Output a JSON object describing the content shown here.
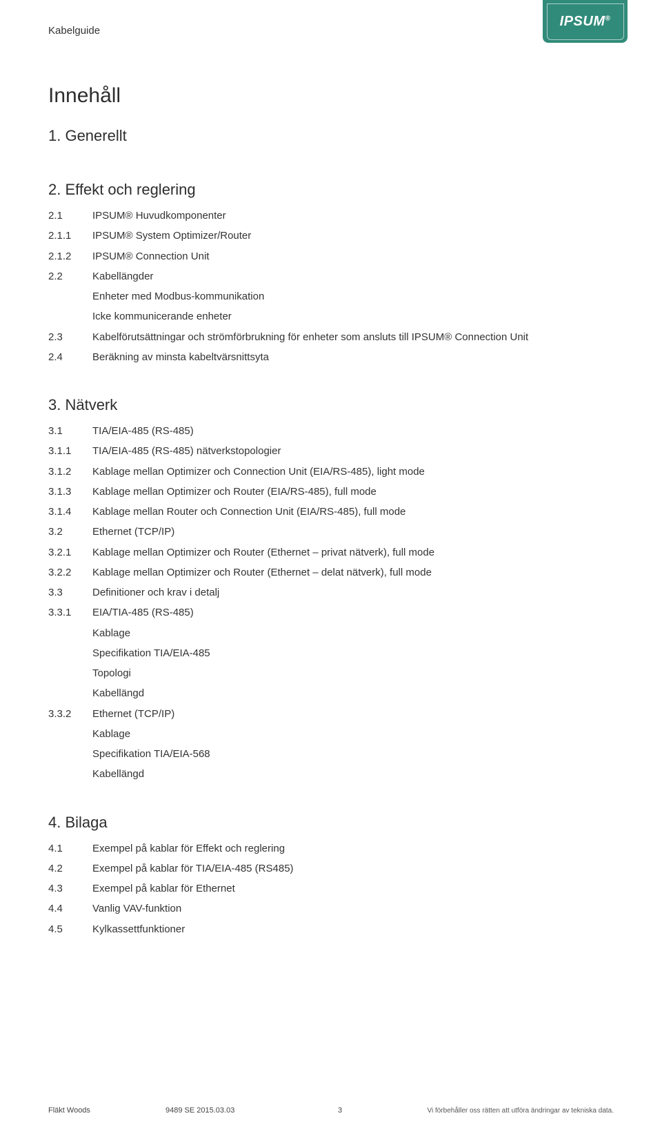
{
  "header": {
    "doc_label": "Kabelguide",
    "brand": "IPSUM",
    "brand_reg": "®"
  },
  "title": "Innehåll",
  "sections": [
    {
      "head": "1. Generellt",
      "items": []
    },
    {
      "head": "2. Effekt och reglering",
      "items": [
        {
          "num": "2.1",
          "text": "IPSUM® Huvudkomponenter"
        },
        {
          "num": "2.1.1",
          "text": "IPSUM® System Optimizer/Router"
        },
        {
          "num": "2.1.2",
          "text": "IPSUM® Connection Unit"
        },
        {
          "num": "2.2",
          "text": "Kabellängder"
        },
        {
          "num": "",
          "text": "Enheter med Modbus-kommunikation",
          "indent": true
        },
        {
          "num": "",
          "text": "Icke kommunicerande enheter",
          "indent": true
        },
        {
          "num": "2.3",
          "text": "Kabelförutsättningar och strömförbrukning för enheter som ansluts till IPSUM® Connection Unit"
        },
        {
          "num": "2.4",
          "text": "Beräkning av minsta kabeltvärsnittsyta"
        }
      ]
    },
    {
      "head": "3. Nätverk",
      "items": [
        {
          "num": "3.1",
          "text": "TIA/EIA-485 (RS-485)"
        },
        {
          "num": "3.1.1",
          "text": "TIA/EIA-485 (RS-485) nätverkstopologier"
        },
        {
          "num": "3.1.2",
          "text": "Kablage mellan Optimizer och Connection Unit (EIA/RS-485), light mode"
        },
        {
          "num": "3.1.3",
          "text": "Kablage mellan Optimizer och Router (EIA/RS-485), full mode"
        },
        {
          "num": "3.1.4",
          "text": "Kablage mellan Router och Connection Unit (EIA/RS-485), full mode"
        },
        {
          "num": "3.2",
          "text": "Ethernet (TCP/IP)"
        },
        {
          "num": "3.2.1",
          "text": "Kablage mellan Optimizer och Router (Ethernet – privat nätverk), full mode"
        },
        {
          "num": "3.2.2",
          "text": "Kablage mellan Optimizer och Router (Ethernet – delat nätverk), full mode"
        },
        {
          "num": "3.3",
          "text": "Definitioner och krav i detalj"
        },
        {
          "num": "3.3.1",
          "text": "EIA/TIA-485 (RS-485)"
        },
        {
          "num": "",
          "text": "Kablage",
          "indent": true
        },
        {
          "num": "",
          "text": "Specifikation TIA/EIA-485",
          "indent": true
        },
        {
          "num": "",
          "text": "Topologi",
          "indent": true
        },
        {
          "num": "",
          "text": "Kabellängd",
          "indent": true
        },
        {
          "num": "3.3.2",
          "text": "Ethernet (TCP/IP)"
        },
        {
          "num": "",
          "text": "Kablage",
          "indent": true
        },
        {
          "num": "",
          "text": "Specifikation TIA/EIA-568",
          "indent": true
        },
        {
          "num": "",
          "text": "Kabellängd",
          "indent": true
        }
      ]
    },
    {
      "head": "4. Bilaga",
      "items": [
        {
          "num": "4.1",
          "text": "Exempel på kablar för Effekt och reglering"
        },
        {
          "num": "4.2",
          "text": "Exempel på kablar för TIA/EIA-485 (RS485)"
        },
        {
          "num": "4.3",
          "text": "Exempel på kablar för Ethernet"
        },
        {
          "num": "4.4",
          "text": "Vanlig VAV-funktion"
        },
        {
          "num": "4.5",
          "text": "Kylkassettfunktioner"
        }
      ]
    }
  ],
  "footer": {
    "left": "Fläkt Woods",
    "mid": "9489 SE 2015.03.03",
    "page": "3",
    "right": "Vi förbehåller oss rätten att utföra ändringar av tekniska data."
  },
  "colors": {
    "brand_bg": "#318b7a",
    "brand_fg": "#ffffff",
    "text": "#3a3a3a",
    "page_bg": "#ffffff"
  }
}
